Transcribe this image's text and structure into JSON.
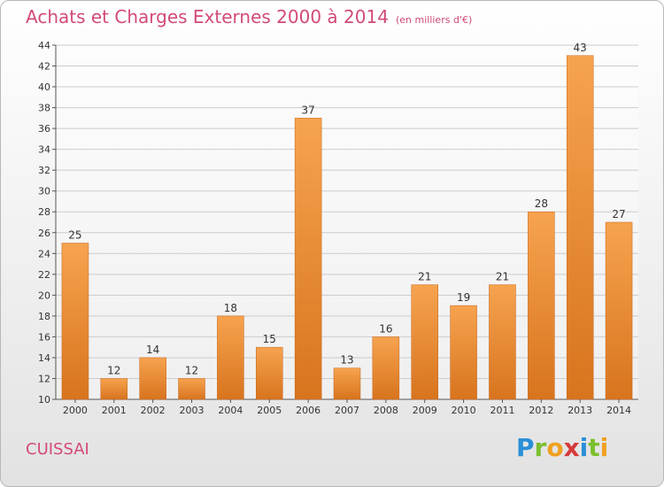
{
  "title": "Achats et Charges Externes 2000 à 2014",
  "subtitle": "(en milliers d'€)",
  "commune": "CUISSAI",
  "logo_letters": [
    "P",
    "r",
    "o",
    "x",
    "i",
    "t",
    "i"
  ],
  "colors": {
    "bar_light": "#f6a34f",
    "bar_dark": "#d8741e",
    "title": "#d24a7a",
    "grid": "#cccccc"
  },
  "chart_data": {
    "type": "bar",
    "categories": [
      "2000",
      "2001",
      "2002",
      "2003",
      "2004",
      "2005",
      "2006",
      "2007",
      "2008",
      "2009",
      "2010",
      "2011",
      "2012",
      "2013",
      "2014"
    ],
    "values": [
      25,
      12,
      14,
      12,
      18,
      15,
      37,
      13,
      16,
      21,
      19,
      21,
      28,
      43,
      27
    ],
    "data_labels": [
      "25",
      "12",
      "14",
      "12",
      "18",
      "15",
      "37",
      "13",
      "16",
      "21",
      "19",
      "21",
      "28",
      "43",
      "27"
    ],
    "ylim": [
      10,
      44
    ],
    "yticks": [
      "10",
      "12",
      "14",
      "16",
      "18",
      "20",
      "22",
      "24",
      "26",
      "28",
      "30",
      "32",
      "34",
      "36",
      "38",
      "40",
      "42",
      "44"
    ],
    "grid": true
  }
}
